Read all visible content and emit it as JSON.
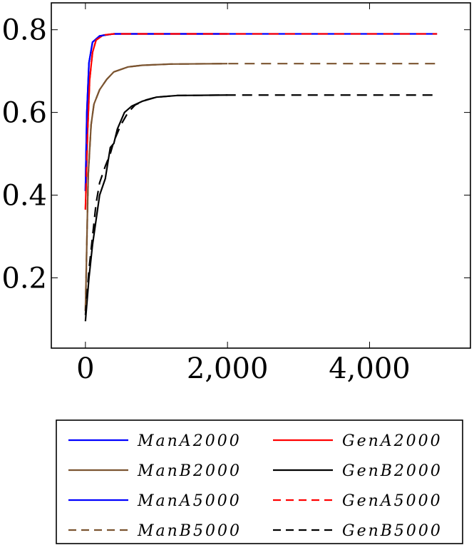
{
  "chart_data": {
    "type": "line",
    "title": "",
    "xlabel": "",
    "ylabel": "",
    "xlim": [
      -480,
      5420
    ],
    "ylim": [
      0.03,
      0.865
    ],
    "grid": false,
    "legend_position": "bottom",
    "x_ticks": [
      0,
      2000,
      4000
    ],
    "x_tick_labels": [
      "0",
      "2,000",
      "4,000"
    ],
    "y_ticks": [
      0.2,
      0.4,
      0.6,
      0.8
    ],
    "y_tick_labels": [
      "0.2",
      "0.4",
      "0.6",
      "0.8"
    ],
    "series": [
      {
        "name": "ManA2000",
        "color": "#0000ff",
        "dash": "solid",
        "points": [
          [
            0,
            0.41
          ],
          [
            20,
            0.6
          ],
          [
            50,
            0.72
          ],
          [
            100,
            0.77
          ],
          [
            200,
            0.785
          ],
          [
            400,
            0.79
          ],
          [
            1000,
            0.79
          ],
          [
            2000,
            0.79
          ]
        ]
      },
      {
        "name": "GenA2000",
        "color": "#ff0000",
        "dash": "solid",
        "points": [
          [
            0,
            0.365
          ],
          [
            30,
            0.55
          ],
          [
            60,
            0.68
          ],
          [
            100,
            0.745
          ],
          [
            150,
            0.775
          ],
          [
            250,
            0.787
          ],
          [
            400,
            0.79
          ],
          [
            1000,
            0.79
          ],
          [
            2000,
            0.79
          ]
        ]
      },
      {
        "name": "ManB2000",
        "color": "#7b5430",
        "dash": "solid",
        "points": [
          [
            0,
            0.12
          ],
          [
            40,
            0.45
          ],
          [
            80,
            0.57
          ],
          [
            120,
            0.62
          ],
          [
            200,
            0.655
          ],
          [
            300,
            0.68
          ],
          [
            400,
            0.698
          ],
          [
            600,
            0.71
          ],
          [
            800,
            0.714
          ],
          [
            1200,
            0.717
          ],
          [
            2000,
            0.718
          ]
        ]
      },
      {
        "name": "GenB2000",
        "color": "#000000",
        "dash": "solid",
        "points": [
          [
            0,
            0.095
          ],
          [
            50,
            0.2
          ],
          [
            100,
            0.28
          ],
          [
            150,
            0.34
          ],
          [
            200,
            0.4
          ],
          [
            280,
            0.44
          ],
          [
            350,
            0.515
          ],
          [
            400,
            0.525
          ],
          [
            450,
            0.56
          ],
          [
            550,
            0.6
          ],
          [
            650,
            0.615
          ],
          [
            800,
            0.627
          ],
          [
            1000,
            0.637
          ],
          [
            1300,
            0.641
          ],
          [
            2000,
            0.642
          ]
        ]
      },
      {
        "name": "ManA5000",
        "color": "#0000ff",
        "dash": "solid",
        "points": [
          [
            0,
            0.41
          ],
          [
            20,
            0.6
          ],
          [
            50,
            0.72
          ],
          [
            100,
            0.77
          ],
          [
            200,
            0.785
          ],
          [
            400,
            0.79
          ],
          [
            1000,
            0.79
          ],
          [
            4950,
            0.79
          ]
        ]
      },
      {
        "name": "GenA5000",
        "color": "#ff0000",
        "dash": "dashed",
        "points": [
          [
            0,
            0.365
          ],
          [
            30,
            0.55
          ],
          [
            60,
            0.68
          ],
          [
            100,
            0.745
          ],
          [
            150,
            0.775
          ],
          [
            250,
            0.787
          ],
          [
            400,
            0.79
          ],
          [
            1000,
            0.79
          ],
          [
            4950,
            0.79
          ]
        ]
      },
      {
        "name": "ManB5000",
        "color": "#7b5430",
        "dash": "dashed",
        "points": [
          [
            0,
            0.12
          ],
          [
            40,
            0.45
          ],
          [
            80,
            0.57
          ],
          [
            120,
            0.62
          ],
          [
            200,
            0.655
          ],
          [
            300,
            0.68
          ],
          [
            400,
            0.698
          ],
          [
            600,
            0.71
          ],
          [
            800,
            0.714
          ],
          [
            1200,
            0.717
          ],
          [
            2000,
            0.718
          ],
          [
            4950,
            0.718
          ]
        ]
      },
      {
        "name": "GenB5000",
        "color": "#000000",
        "dash": "dashed",
        "points": [
          [
            0,
            0.11
          ],
          [
            50,
            0.22
          ],
          [
            100,
            0.3
          ],
          [
            150,
            0.38
          ],
          [
            200,
            0.43
          ],
          [
            280,
            0.47
          ],
          [
            350,
            0.5
          ],
          [
            400,
            0.53
          ],
          [
            500,
            0.57
          ],
          [
            600,
            0.6
          ],
          [
            700,
            0.618
          ],
          [
            850,
            0.63
          ],
          [
            1000,
            0.637
          ],
          [
            1300,
            0.641
          ],
          [
            2000,
            0.642
          ],
          [
            4950,
            0.642
          ]
        ]
      }
    ]
  }
}
